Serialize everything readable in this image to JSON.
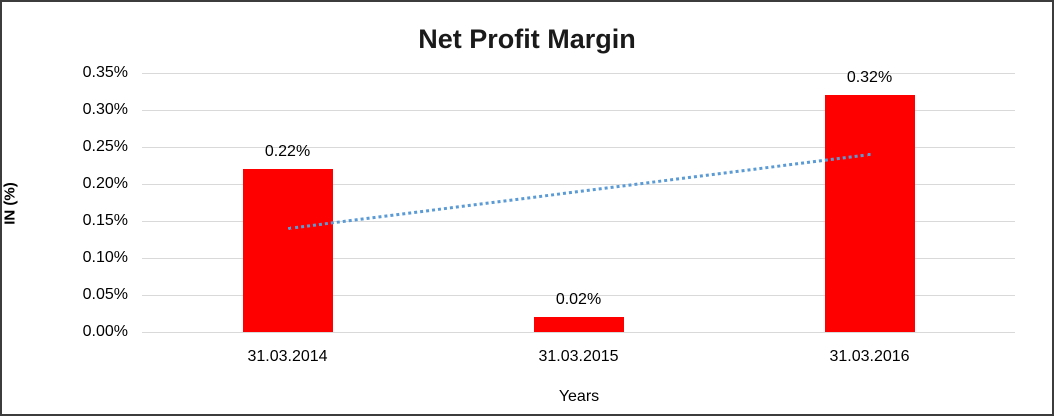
{
  "page": {
    "background_color": "#ffffff",
    "border_color": "#3c3c3c"
  },
  "chart_data": {
    "type": "bar",
    "title": "Net Profit Margin",
    "categories": [
      "31.03.2014",
      "31.03.2015",
      "31.03.2016"
    ],
    "values": [
      0.22,
      0.02,
      0.32
    ],
    "value_labels": [
      "0.22%",
      "0.02%",
      "0.32%"
    ],
    "xlabel": "Years",
    "ylabel": "IN (%)",
    "ylim": [
      0,
      0.35
    ],
    "ytick_step": 0.05,
    "ytick_labels": [
      "0.00%",
      "0.05%",
      "0.10%",
      "0.15%",
      "0.20%",
      "0.25%",
      "0.30%",
      "0.35%"
    ],
    "grid": true,
    "legend": "none",
    "bar_color": "#ff0000",
    "gridline_color": "#d9d9d9",
    "text_color": "#000000",
    "title_color": "#1a1a1a",
    "trendline": {
      "type": "linear",
      "style": "dotted",
      "color": "#5b9bd5",
      "start_category_index": 0,
      "end_category_index": 2,
      "start_value": 0.14,
      "end_value": 0.24
    }
  }
}
